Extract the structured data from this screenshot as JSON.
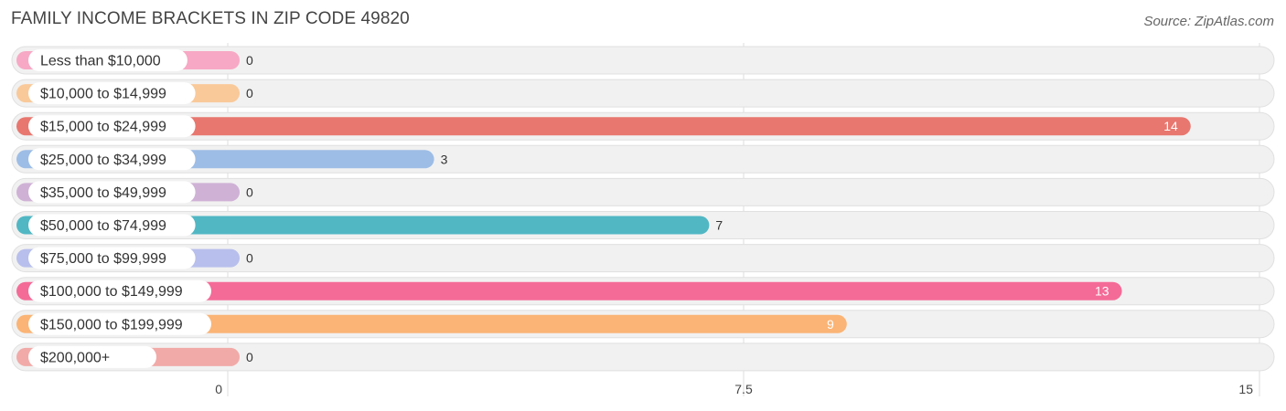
{
  "header": {
    "title": "FAMILY INCOME BRACKETS IN ZIP CODE 49820",
    "source": "Source: ZipAtlas.com"
  },
  "chart_data": {
    "type": "bar",
    "orientation": "horizontal",
    "title": "FAMILY INCOME BRACKETS IN ZIP CODE 49820",
    "xlabel": "",
    "ylabel": "",
    "xlim": [
      0,
      15
    ],
    "ticks": [
      {
        "value": 0,
        "label": "0"
      },
      {
        "value": 7.5,
        "label": "7.5"
      },
      {
        "value": 15,
        "label": "15"
      }
    ],
    "grid": true,
    "categories": [
      "Less than $10,000",
      "$10,000 to $14,999",
      "$15,000 to $24,999",
      "$25,000 to $34,999",
      "$35,000 to $49,999",
      "$50,000 to $74,999",
      "$75,000 to $99,999",
      "$100,000 to $149,999",
      "$150,000 to $199,999",
      "$200,000+"
    ],
    "values": [
      0,
      0,
      14,
      3,
      0,
      7,
      0,
      13,
      9,
      0
    ],
    "colors": [
      "#f7a8c4",
      "#f9c99a",
      "#e8776f",
      "#9dbde6",
      "#cfb1d6",
      "#51b7c3",
      "#b8bfec",
      "#f46b97",
      "#fbb475",
      "#f1aaa8"
    ]
  }
}
